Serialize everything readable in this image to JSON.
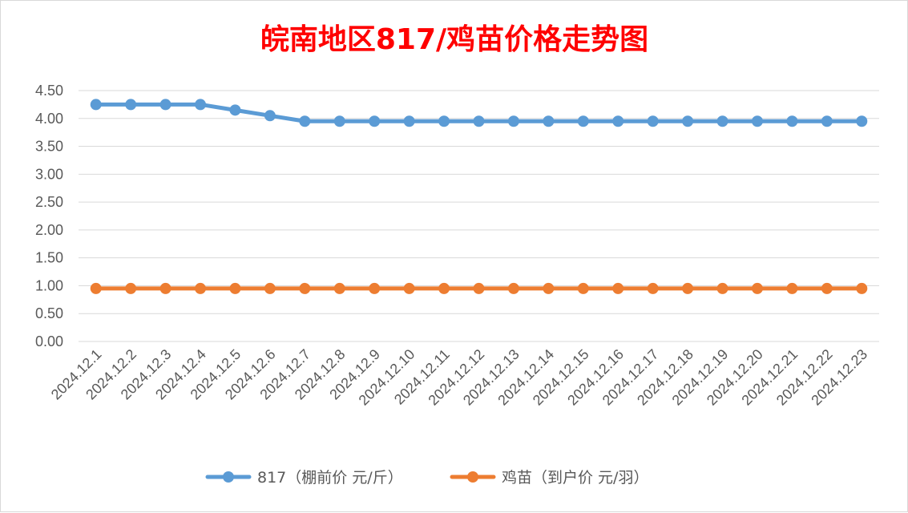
{
  "chart_data": {
    "type": "line",
    "title": "皖南地区817/鸡苗价格走势图",
    "xlabel": "",
    "ylabel": "",
    "ylim": [
      0,
      4.5
    ],
    "yticks": [
      "0.00",
      "0.50",
      "1.00",
      "1.50",
      "2.00",
      "2.50",
      "3.00",
      "3.50",
      "4.00",
      "4.50"
    ],
    "grid": true,
    "legend_position": "bottom",
    "categories": [
      "2024.12.1",
      "2024.12.2",
      "2024.12.3",
      "2024.12.4",
      "2024.12.5",
      "2024.12.6",
      "2024.12.7",
      "2024.12.8",
      "2024.12.9",
      "2024.12.10",
      "2024.12.11",
      "2024.12.12",
      "2024.12.13",
      "2024.12.14",
      "2024.12.15",
      "2024.12.16",
      "2024.12.17",
      "2024.12.18",
      "2024.12.19",
      "2024.12.20",
      "2024.12.21",
      "2024.12.22",
      "2024.12.23"
    ],
    "series": [
      {
        "name": "817（棚前价 元/斤）",
        "color": "#5b9bd5",
        "values": [
          4.25,
          4.25,
          4.25,
          4.25,
          4.15,
          4.05,
          3.95,
          3.95,
          3.95,
          3.95,
          3.95,
          3.95,
          3.95,
          3.95,
          3.95,
          3.95,
          3.95,
          3.95,
          3.95,
          3.95,
          3.95,
          3.95,
          3.95
        ]
      },
      {
        "name": "鸡苗（到户价 元/羽）",
        "color": "#ed7d31",
        "values": [
          0.95,
          0.95,
          0.95,
          0.95,
          0.95,
          0.95,
          0.95,
          0.95,
          0.95,
          0.95,
          0.95,
          0.95,
          0.95,
          0.95,
          0.95,
          0.95,
          0.95,
          0.95,
          0.95,
          0.95,
          0.95,
          0.95,
          0.95
        ]
      }
    ]
  }
}
